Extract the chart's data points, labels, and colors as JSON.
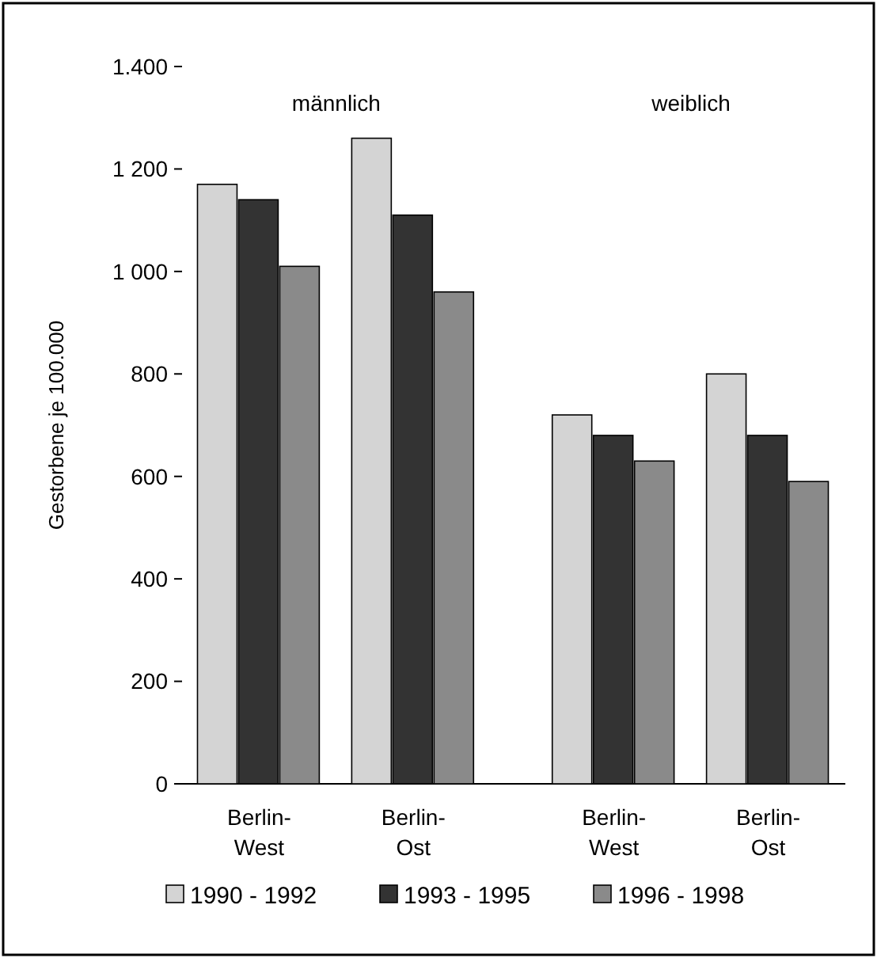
{
  "chart_data": {
    "type": "bar",
    "ylabel": "Gestorbene je 100.000",
    "categories": [
      "Berlin-West",
      "Berlin-Ost",
      "Berlin-West",
      "Berlin-Ost"
    ],
    "series": [
      {
        "name": "1990 - 1992",
        "color": "#d4d4d4",
        "values": [
          1170,
          1260,
          720,
          800
        ]
      },
      {
        "name": "1993 - 1995",
        "color": "#333333",
        "values": [
          1140,
          1110,
          680,
          680
        ]
      },
      {
        "name": "1996 - 1998",
        "color": "#8a8a8a",
        "values": [
          1010,
          960,
          630,
          590
        ]
      }
    ],
    "annotations": [
      "männlich",
      "weiblich"
    ],
    "ylim": [
      0,
      1400
    ],
    "yticks": [
      0,
      200,
      400,
      600,
      800,
      {
        "value": 1000,
        "label": "1 000"
      },
      {
        "value": 1200,
        "label": "1 200"
      },
      {
        "value": 1400,
        "label": "1.400"
      }
    ],
    "legend": "bottom"
  }
}
